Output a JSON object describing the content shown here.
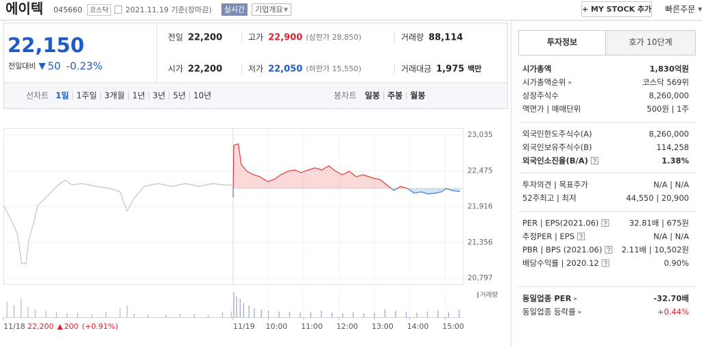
{
  "header": {
    "name": "에이텍",
    "code": "045660",
    "market": "코스닥",
    "date": "2021.11.19 기준(장마감)",
    "realtime": "실시간",
    "company": "기업개요",
    "mystock": "+ MY STOCK 추가",
    "quick_order": "빠른주문"
  },
  "summary": {
    "price": "22,150",
    "change_label": "전일대비",
    "change": "50",
    "rate": "-0.23%",
    "stats": [
      {
        "label": "전일",
        "value": "22,200"
      },
      {
        "label": "고가",
        "value": "22,900",
        "sub": "(상한가 28,850)",
        "color": "#e0212c"
      },
      {
        "label": "거래량",
        "value": "88,114"
      },
      {
        "label": "시가",
        "value": "22,200"
      },
      {
        "label": "저가",
        "value": "22,050",
        "sub": "(하한가 15,550)",
        "color": "#1d5bc9"
      },
      {
        "label": "거래대금",
        "value": "1,975",
        "sub": "백만"
      }
    ]
  },
  "chart_tabs": {
    "line_label": "선차트",
    "line_items": [
      "1일",
      "1주일",
      "3개월",
      "1년",
      "3년",
      "5년",
      "10년"
    ],
    "active": 0,
    "candle_label": "봉차트",
    "candle_items": [
      "일봉",
      "주봉",
      "월봉"
    ]
  },
  "chart": {
    "type": "line",
    "ylim": [
      20700,
      23142
    ],
    "yticks": [
      {
        "value": 23035,
        "label": "23,035"
      },
      {
        "value": 22475,
        "label": "22,475"
      },
      {
        "value": 21916,
        "label": "21,916"
      },
      {
        "value": 21356,
        "label": "21,356"
      },
      {
        "value": 20797,
        "label": "20,797"
      }
    ],
    "xlim": [
      0,
      13
    ],
    "xticks": [
      {
        "value": 0,
        "label": "11/18"
      },
      {
        "value": 6.5,
        "label": "11/19"
      },
      {
        "value": 7.5,
        "label": "10:00"
      },
      {
        "value": 8.5,
        "label": "11:00"
      },
      {
        "value": 9.5,
        "label": "12:00"
      },
      {
        "value": 10.5,
        "label": "13:00"
      },
      {
        "value": 11.5,
        "label": "14:00"
      },
      {
        "value": 12.5,
        "label": "15:00"
      }
    ],
    "baseline": 22200,
    "grid": true,
    "series": [
      {
        "color": "#c4c4c4",
        "x": [
          0,
          0.19,
          0.39,
          0.52,
          0.64,
          0.72,
          0.83,
          0.97,
          1.17,
          1.36,
          1.55,
          1.75,
          1.94,
          2.23,
          2.62,
          3.01,
          3.3,
          3.5,
          3.69,
          3.98,
          4.37,
          4.76,
          5.15,
          5.53,
          5.92,
          6.21,
          6.47
        ],
        "values": [
          21932,
          21739,
          21503,
          21022,
          21022,
          21396,
          21611,
          21932,
          22039,
          22146,
          22253,
          22328,
          22253,
          22275,
          22232,
          22200,
          22146,
          21846,
          22039,
          22232,
          22275,
          22232,
          22275,
          22232,
          22275,
          22253,
          22253
        ]
      },
      {
        "color": "#e0393e",
        "color_down": "#3d7fd8",
        "x": [
          6.5,
          6.52,
          6.65,
          6.73,
          6.89,
          7.08,
          7.27,
          7.47,
          7.66,
          7.85,
          8.05,
          8.24,
          8.43,
          8.63,
          8.82,
          9.01,
          9.21,
          9.4,
          9.59,
          9.79,
          9.98,
          10.18,
          10.47,
          10.66,
          10.85,
          11.05,
          11.24,
          11.43,
          11.63,
          11.82,
          12.01,
          12.21,
          12.4,
          12.53,
          12.69,
          12.92
        ],
        "values": [
          22060,
          22874,
          22896,
          22575,
          22468,
          22414,
          22382,
          22307,
          22339,
          22414,
          22468,
          22489,
          22446,
          22489,
          22521,
          22489,
          22553,
          22468,
          22414,
          22468,
          22382,
          22414,
          22360,
          22339,
          22253,
          22168,
          22232,
          22200,
          22125,
          22146,
          22114,
          22125,
          22146,
          22200,
          22168,
          22150
        ]
      }
    ],
    "volume": {
      "ylim": [
        0,
        100
      ],
      "series": [
        {
          "color": "#b8b8b8",
          "x": [
            0.1,
            0.3,
            0.5,
            0.7,
            0.9,
            1.2,
            1.5,
            1.8,
            2.1,
            2.5,
            2.9,
            3.3,
            3.5,
            3.7,
            4.1,
            4.6,
            5,
            5.4,
            5.8,
            6.2,
            6.45
          ],
          "values": [
            60,
            45,
            70,
            40,
            30,
            25,
            20,
            15,
            18,
            12,
            20,
            35,
            45,
            15,
            12,
            10,
            14,
            12,
            10,
            18,
            22
          ]
        },
        {
          "color": "#8fa3cc",
          "x": [
            6.52,
            6.6,
            6.7,
            6.8,
            6.95,
            7.1,
            7.3,
            7.5,
            7.8,
            8.1,
            8.4,
            8.7,
            9,
            9.3,
            9.6,
            9.9,
            10.2,
            10.5,
            10.8,
            11.1,
            11.4,
            11.7,
            12,
            12.3,
            12.6,
            12.9
          ],
          "values": [
            95,
            80,
            70,
            55,
            45,
            35,
            30,
            25,
            22,
            20,
            18,
            20,
            25,
            18,
            15,
            20,
            15,
            18,
            30,
            25,
            20,
            18,
            22,
            25,
            20,
            30
          ]
        }
      ]
    },
    "volume_label": "거래량",
    "footer": {
      "prev_close": "22,200",
      "change": "200",
      "rate": "(+0.91%)"
    }
  },
  "info_panel": {
    "tabs": [
      "투자정보",
      "호가 10단계"
    ],
    "groups": [
      [
        {
          "label": "시가총액",
          "value": "1,830억원",
          "bold": true
        },
        {
          "label": "시가총액순위",
          "value": "코스닥 569위",
          "arrow": true
        },
        {
          "label": "상장주식수",
          "value": "8,260,000"
        },
        {
          "label": "액면가 | 매매단위",
          "value": "500원 | 1주"
        }
      ],
      [
        {
          "label": "외국인한도주식수(A)",
          "value": "8,260,000"
        },
        {
          "label": "외국인보유주식수(B)",
          "value": "114,258"
        },
        {
          "label": "외국인소진율(B/A)",
          "value": "1.38%",
          "help": true,
          "bold": true
        }
      ],
      [
        {
          "label": "투자의견 | 목표주가",
          "value": "N/A | N/A"
        },
        {
          "label": "52주최고 | 최저",
          "value": "44,550 | 20,900"
        }
      ],
      [
        {
          "label": "PER | EPS(2021.06)",
          "value": "32.81배 | 675원",
          "help": true
        },
        {
          "label": "추정PER | EPS",
          "value": "N/A | N/A",
          "help": true
        },
        {
          "label": "PBR | BPS (2021.06)",
          "value": "2.11배 | 10,502원",
          "help": true
        },
        {
          "label": "배당수익률 | 2020.12",
          "value": "0.90%",
          "help": true
        }
      ],
      [
        {
          "label": "동일업종 PER",
          "value": "-32.70배",
          "arrow": true,
          "bold": true
        },
        {
          "label": "동일업종 등락률",
          "value": "+0.44%",
          "arrow": true,
          "color": "#e0212c"
        }
      ]
    ]
  }
}
